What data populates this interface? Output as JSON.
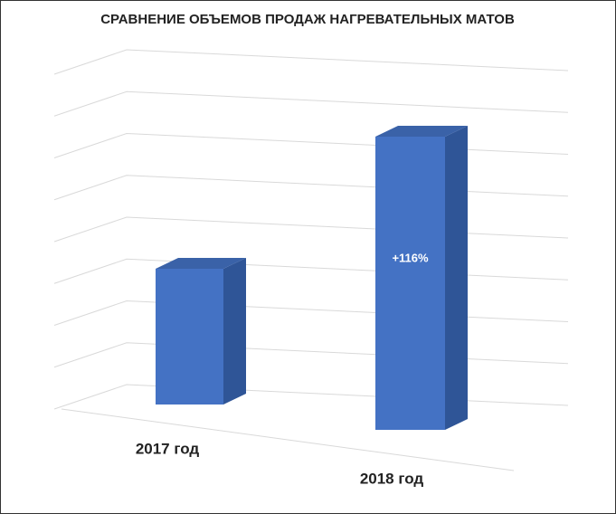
{
  "chart_data": {
    "type": "bar3d",
    "title": "СРАВНЕНИЕ ОБЪЕМОВ ПРОДАЖ НАГРЕВАТЕЛЬНЫХ МАТОВ",
    "categories": [
      "2017 год",
      "2018 год"
    ],
    "values": [
      100,
      216
    ],
    "annotation": "+116%",
    "color": "#4472c4",
    "ylim": [
      0,
      240
    ],
    "yticks": [
      0,
      30,
      60,
      90,
      120,
      150,
      180,
      210,
      240
    ],
    "grid": true
  }
}
